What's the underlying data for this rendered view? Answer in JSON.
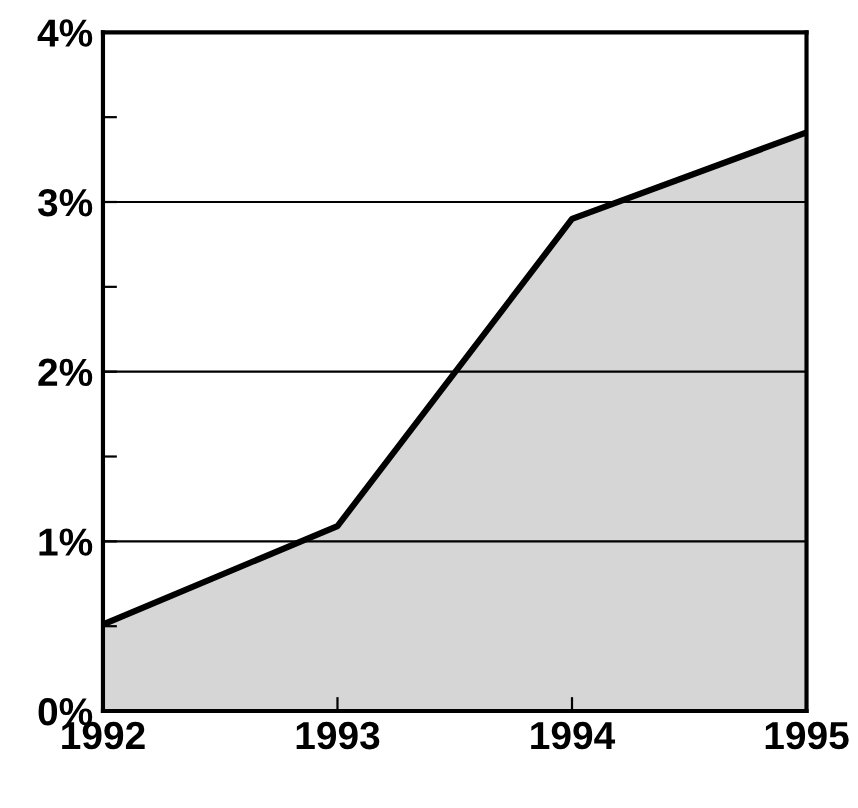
{
  "chart_data": {
    "type": "area",
    "x": [
      1992,
      1993,
      1994,
      1995
    ],
    "series": [
      {
        "color": "#000000",
        "values": [
          0.51,
          1.09,
          2.9,
          3.41
        ]
      }
    ],
    "xlim": [
      1992,
      1995
    ],
    "ylim": [
      0,
      4
    ],
    "xticks": [
      1992,
      1993,
      1994,
      1995
    ],
    "yticks": [
      {
        "value": 0,
        "label": "0%"
      },
      {
        "value": 0.5,
        "label": null
      },
      {
        "value": 1,
        "label": "1%"
      },
      {
        "value": 1.5,
        "label": null
      },
      {
        "value": 2,
        "label": "2%"
      },
      {
        "value": 2.5,
        "label": null
      },
      {
        "value": 3,
        "label": "3%"
      },
      {
        "value": 3.5,
        "label": null
      },
      {
        "value": 4,
        "label": "4%"
      }
    ],
    "grid": "y",
    "legend": false
  }
}
